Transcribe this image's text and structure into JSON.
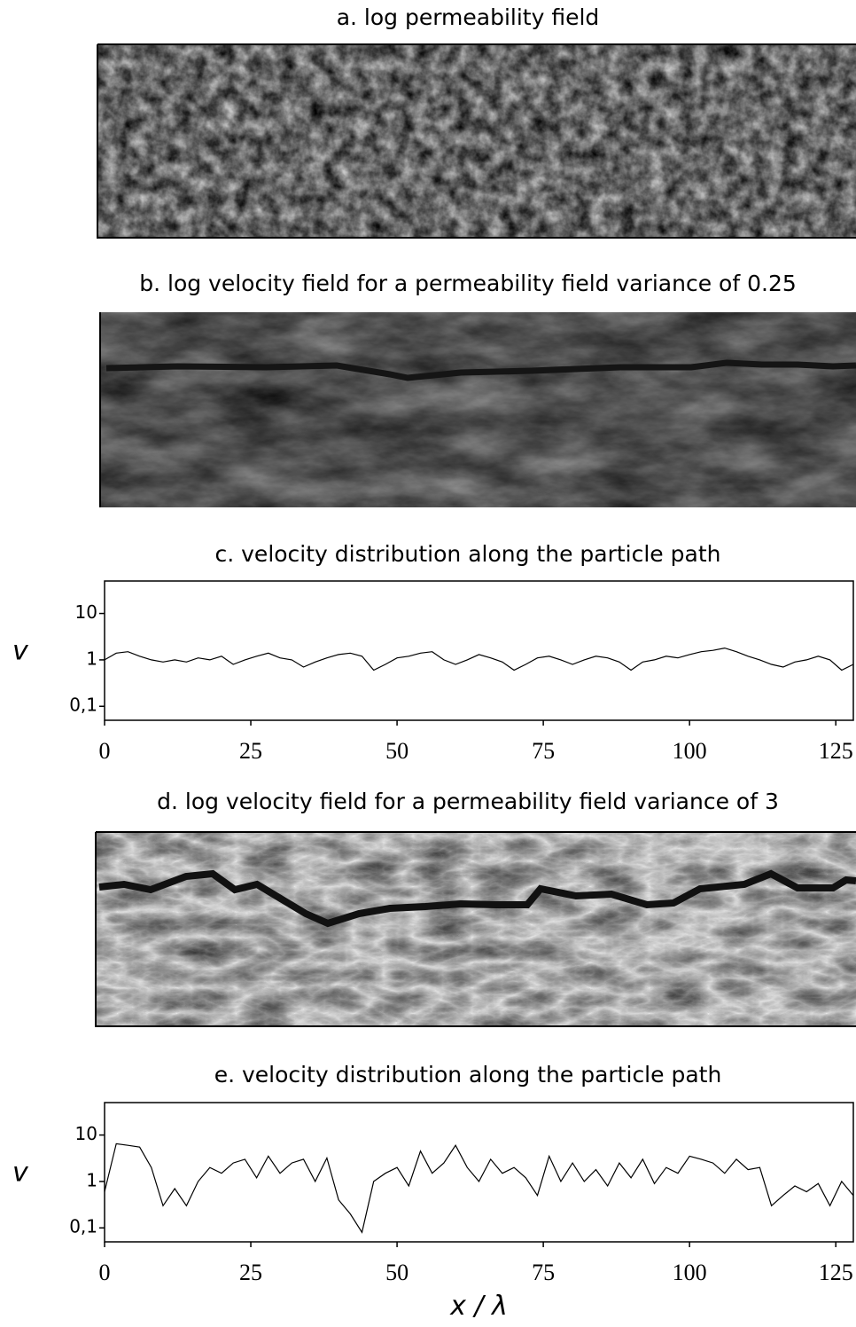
{
  "chart_data": [
    {
      "type": "image",
      "title": "a.  log permeability field"
    },
    {
      "type": "image",
      "title": "b. log velocity field for a permeability field variance of 0.25"
    },
    {
      "type": "line",
      "title": "c. velocity distribution along the particle path",
      "ylabel": "v",
      "log_y": true,
      "color": "#000000",
      "xlim": [
        0,
        128
      ],
      "xticks": [
        0,
        25,
        50,
        75,
        100,
        125
      ],
      "ylim": [
        0.05,
        50
      ],
      "yticks": [
        {
          "value": 0.1,
          "label": "0,1"
        },
        1,
        10
      ],
      "x": [
        0,
        2,
        4,
        6,
        8,
        10,
        12,
        14,
        16,
        18,
        20,
        22,
        24,
        26,
        28,
        30,
        32,
        34,
        36,
        38,
        40,
        42,
        44,
        46,
        48,
        50,
        52,
        54,
        56,
        58,
        60,
        62,
        64,
        66,
        68,
        70,
        72,
        74,
        76,
        78,
        80,
        82,
        84,
        86,
        88,
        90,
        92,
        94,
        96,
        98,
        100,
        102,
        104,
        106,
        108,
        110,
        112,
        114,
        116,
        118,
        120,
        122,
        124,
        126,
        128
      ],
      "values": [
        1.0,
        1.4,
        1.5,
        1.2,
        1.0,
        0.9,
        1.0,
        0.9,
        1.1,
        1.0,
        1.2,
        0.8,
        1.0,
        1.2,
        1.4,
        1.1,
        1.0,
        0.7,
        0.9,
        1.1,
        1.3,
        1.4,
        1.2,
        0.6,
        0.8,
        1.1,
        1.2,
        1.4,
        1.5,
        1.0,
        0.8,
        1.0,
        1.3,
        1.1,
        0.9,
        0.6,
        0.8,
        1.1,
        1.2,
        1.0,
        0.8,
        1.0,
        1.2,
        1.1,
        0.9,
        0.6,
        0.9,
        1.0,
        1.2,
        1.1,
        1.3,
        1.5,
        1.6,
        1.8,
        1.5,
        1.2,
        1.0,
        0.8,
        0.7,
        0.9,
        1.0,
        1.2,
        1.0,
        0.6,
        0.8
      ]
    },
    {
      "type": "image",
      "title": "d. log velocity field for a permeability field variance of 3"
    },
    {
      "type": "line",
      "title": "e. velocity distribution along the particle path",
      "ylabel": "v",
      "xlabel": "x / λ",
      "log_y": true,
      "color": "#000000",
      "xlim": [
        0,
        128
      ],
      "xticks": [
        0,
        25,
        50,
        75,
        100,
        125
      ],
      "ylim": [
        0.05,
        50
      ],
      "yticks": [
        {
          "value": 0.1,
          "label": "0,1"
        },
        1,
        10
      ],
      "x": [
        0,
        2,
        4,
        6,
        8,
        10,
        12,
        14,
        16,
        18,
        20,
        22,
        24,
        26,
        28,
        30,
        32,
        34,
        36,
        38,
        40,
        42,
        44,
        46,
        48,
        50,
        52,
        54,
        56,
        58,
        60,
        62,
        64,
        66,
        68,
        70,
        72,
        74,
        76,
        78,
        80,
        82,
        84,
        86,
        88,
        90,
        92,
        94,
        96,
        98,
        100,
        102,
        104,
        106,
        108,
        110,
        112,
        114,
        116,
        118,
        120,
        122,
        124,
        126,
        128
      ],
      "values": [
        0.6,
        6.5,
        6.0,
        5.5,
        2.0,
        0.3,
        0.7,
        0.3,
        1.0,
        2.0,
        1.5,
        2.5,
        3.0,
        1.2,
        3.5,
        1.5,
        2.5,
        3.0,
        1.0,
        3.2,
        0.4,
        0.2,
        0.08,
        1.0,
        1.5,
        2.0,
        0.8,
        4.5,
        1.5,
        2.5,
        6.0,
        2.0,
        1.0,
        3.0,
        1.5,
        2.0,
        1.2,
        0.5,
        3.5,
        1.0,
        2.5,
        1.0,
        1.8,
        0.8,
        2.5,
        1.2,
        3.0,
        0.9,
        2.0,
        1.5,
        3.5,
        3.0,
        2.5,
        1.5,
        3.0,
        1.8,
        2.0,
        0.3,
        0.5,
        0.8,
        0.6,
        0.9,
        0.3,
        1.0,
        0.5
      ]
    }
  ]
}
